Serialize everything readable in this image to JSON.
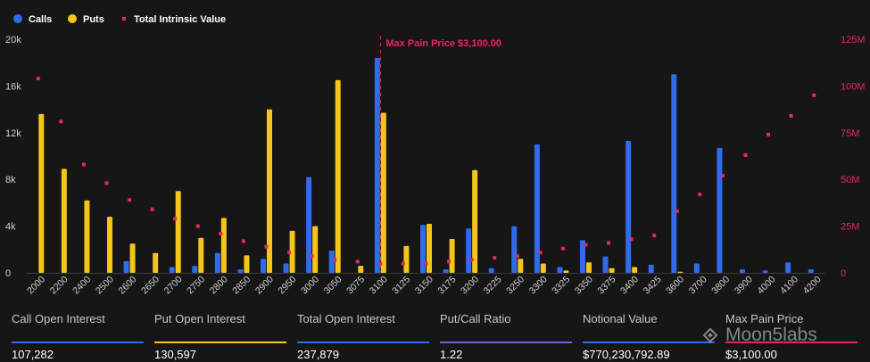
{
  "legend": {
    "calls": "Calls",
    "puts": "Puts",
    "intrinsic": "Total Intrinsic Value"
  },
  "colors": {
    "calls": "#2F6BEB",
    "puts": "#F5C518",
    "intrinsic": "#E8265E",
    "ratio_line": "#7B5CE5"
  },
  "chart_data": {
    "type": "bar",
    "categories": [
      "2000",
      "2200",
      "2400",
      "2500",
      "2600",
      "2650",
      "2700",
      "2750",
      "2800",
      "2850",
      "2900",
      "2950",
      "3000",
      "3050",
      "3075",
      "3100",
      "3125",
      "3150",
      "3175",
      "3200",
      "3225",
      "3250",
      "3300",
      "3325",
      "3350",
      "3375",
      "3400",
      "3425",
      "3600",
      "3700",
      "3800",
      "3900",
      "4000",
      "4100",
      "4200"
    ],
    "series": [
      {
        "name": "Calls",
        "axis": "left",
        "values": [
          0,
          0,
          0,
          0,
          1000,
          0,
          500,
          600,
          1700,
          300,
          1200,
          800,
          8200,
          1900,
          0,
          18400,
          0,
          4100,
          300,
          3800,
          400,
          4000,
          11000,
          500,
          2800,
          1400,
          11300,
          700,
          17000,
          800,
          10700,
          300,
          200,
          900,
          300
        ]
      },
      {
        "name": "Puts",
        "axis": "left",
        "values": [
          13600,
          8900,
          6200,
          4800,
          2500,
          1700,
          7000,
          3000,
          4700,
          1500,
          14000,
          3600,
          4000,
          16500,
          600,
          13700,
          2300,
          4200,
          2900,
          8800,
          0,
          1200,
          800,
          200,
          900,
          400,
          500,
          0,
          100,
          0,
          0,
          0,
          0,
          0,
          0
        ]
      },
      {
        "name": "Total Intrinsic Value",
        "axis": "right",
        "type": "scatter",
        "values": [
          104,
          81,
          58,
          48,
          39,
          34,
          29,
          25,
          21,
          17,
          14,
          11,
          9,
          7,
          6,
          5,
          5,
          5,
          6,
          7,
          8,
          9,
          11,
          13,
          15,
          16,
          18,
          20,
          33,
          42,
          52,
          63,
          74,
          84,
          95
        ]
      }
    ],
    "y_left": {
      "min": 0,
      "max": 20000,
      "ticks": [
        0,
        4000,
        8000,
        12000,
        16000,
        20000
      ],
      "tick_labels": [
        "0",
        "4k",
        "8k",
        "12k",
        "16k",
        "20k"
      ]
    },
    "y_right": {
      "min": 0,
      "max": 125,
      "ticks": [
        0,
        25,
        50,
        75,
        100,
        125
      ],
      "tick_labels": [
        "0",
        "25M",
        "50M",
        "75M",
        "100M",
        "125M"
      ]
    },
    "annotation": {
      "category": "3100",
      "label": "Max Pain Price $3,100.00"
    }
  },
  "stats": [
    {
      "label": "Call Open Interest",
      "value": "107,282",
      "color": "#2F6BEB"
    },
    {
      "label": "Put Open Interest",
      "value": "130,597",
      "color": "#F5C518"
    },
    {
      "label": "Total Open Interest",
      "value": "237,879",
      "color": "#2F6BEB"
    },
    {
      "label": "Put/Call Ratio",
      "value": "1.22",
      "color": "#7B5CE5"
    },
    {
      "label": "Notional Value",
      "value": "$770,230,792.89",
      "color": "#2F6BEB"
    },
    {
      "label": "Max Pain Price",
      "value": "$3,100.00",
      "color": "#E8265E"
    }
  ],
  "watermark": "Moon5labs"
}
